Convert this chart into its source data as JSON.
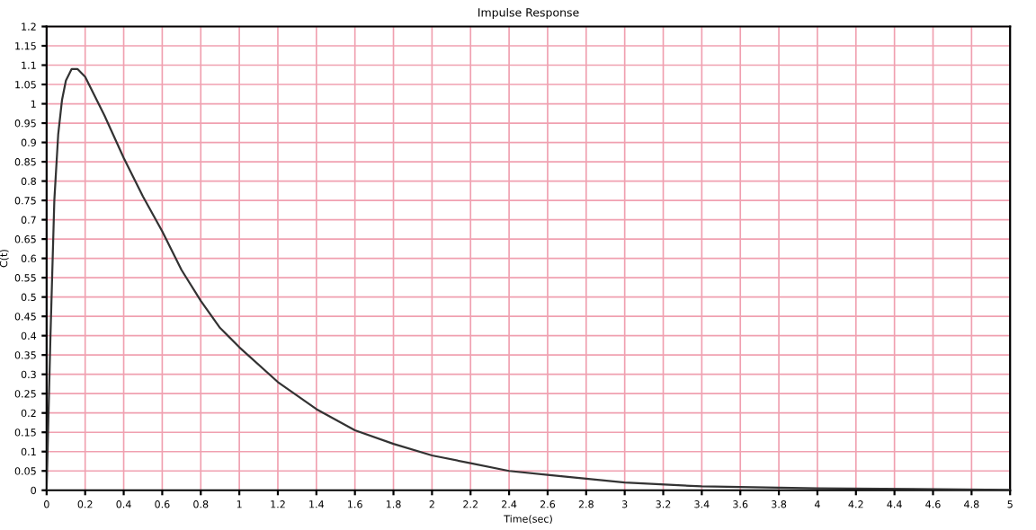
{
  "chart_data": {
    "type": "line",
    "title": "Impulse Response",
    "xlabel": "Time(sec)",
    "ylabel": "C(t)",
    "xlim": [
      0,
      5
    ],
    "ylim": [
      0,
      1.2
    ],
    "xticks": [
      0,
      0.2,
      0.4,
      0.6,
      0.8,
      1,
      1.2,
      1.4,
      1.6,
      1.8,
      2,
      2.2,
      2.4,
      2.6,
      2.8,
      3,
      3.2,
      3.4,
      3.6,
      3.8,
      4,
      4.2,
      4.4,
      4.6,
      4.8,
      5
    ],
    "yticks": [
      0,
      0.05,
      0.1,
      0.15,
      0.2,
      0.25,
      0.3,
      0.35,
      0.4,
      0.45,
      0.5,
      0.55,
      0.6,
      0.65,
      0.7,
      0.75,
      0.8,
      0.85,
      0.9,
      0.95,
      1,
      1.05,
      1.1,
      1.15,
      1.2
    ],
    "grid": true,
    "marker": "none",
    "line_style": "solid",
    "series": [
      {
        "color": "#333333",
        "x": [
          0,
          0.02,
          0.04,
          0.06,
          0.08,
          0.1,
          0.13,
          0.16,
          0.2,
          0.3,
          0.4,
          0.5,
          0.6,
          0.7,
          0.8,
          0.9,
          1.0,
          1.2,
          1.4,
          1.6,
          1.8,
          2.0,
          2.2,
          2.4,
          2.6,
          2.8,
          3.0,
          3.4,
          4.0,
          5.0
        ],
        "values": [
          0,
          0.4,
          0.75,
          0.92,
          1.01,
          1.06,
          1.09,
          1.09,
          1.07,
          0.97,
          0.86,
          0.76,
          0.67,
          0.57,
          0.49,
          0.42,
          0.37,
          0.28,
          0.21,
          0.155,
          0.12,
          0.09,
          0.07,
          0.05,
          0.04,
          0.03,
          0.02,
          0.01,
          0.005,
          0.001
        ]
      }
    ]
  }
}
